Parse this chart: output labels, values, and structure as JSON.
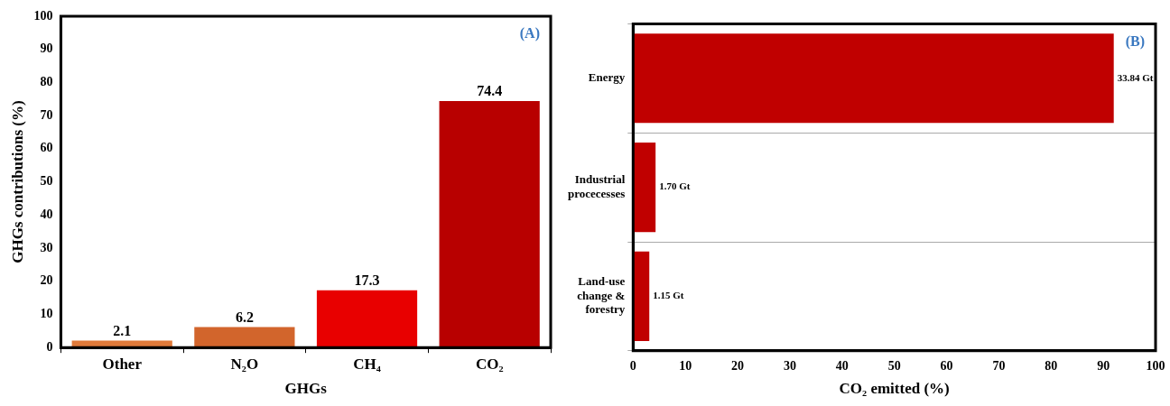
{
  "chart_data": [
    {
      "type": "bar",
      "categories": [
        "Other",
        "N₂O",
        "CH₄",
        "CO₂"
      ],
      "values": [
        2.1,
        6.2,
        17.3,
        74.4
      ],
      "colors": [
        "#e07a3a",
        "#d2652c",
        "#e80000",
        "#b80000"
      ],
      "ylim": [
        0,
        100
      ],
      "yticks": [
        0,
        10,
        20,
        30,
        40,
        50,
        60,
        70,
        80,
        90,
        100
      ],
      "xlabel": "GHGs",
      "ylabel": "GHGs contributions (%)",
      "data_labels": true,
      "grid": false,
      "legend": false,
      "annotations": [
        "(A)"
      ]
    },
    {
      "type": "bar",
      "orientation": "horizontal",
      "categories": [
        "Energy",
        "Industrial procecesses",
        "Land-use change & forestry"
      ],
      "values": [
        92,
        4.3,
        3.1
      ],
      "color": "#c00000",
      "xlim": [
        0,
        100
      ],
      "xticks": [
        0,
        10,
        20,
        30,
        40,
        50,
        60,
        70,
        80,
        90,
        100
      ],
      "xlabel": "CO₂ emitted (%)",
      "grid": "y",
      "legend": false,
      "annotations": [
        "(B)",
        {
          "text": "33.84 Gt",
          "x": 92,
          "y": "Energy"
        },
        {
          "text": "1.70 Gt",
          "x": 4.3,
          "y": "Industrial procecesses"
        },
        {
          "text": "1.15 Gt",
          "x": 3.1,
          "y": "Land-use change & forestry"
        }
      ]
    }
  ]
}
